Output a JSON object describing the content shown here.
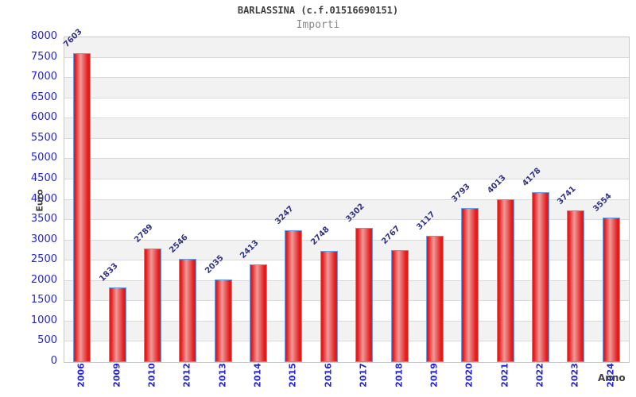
{
  "header": {
    "title": "BARLASSINA (c.f.01516690151)",
    "subtitle": "Importi"
  },
  "chart_data": {
    "type": "bar",
    "title": "BARLASSINA (c.f.01516690151)",
    "subtitle": "Importi",
    "xlabel": "Anno",
    "ylabel": "Euro",
    "categories": [
      "2006",
      "2009",
      "2010",
      "2012",
      "2013",
      "2014",
      "2015",
      "2016",
      "2017",
      "2018",
      "2019",
      "2020",
      "2021",
      "2022",
      "2023",
      "2024"
    ],
    "values": [
      7603,
      1833,
      2789,
      2546,
      2035,
      2413,
      3247,
      2748,
      3302,
      2767,
      3117,
      3793,
      4013,
      4178,
      3741,
      3554
    ],
    "ylim": [
      0,
      8000
    ],
    "ytick_step": 500,
    "grid": "horizontal-bands",
    "legend": "none",
    "value_labels": "above-bars-rotated-45",
    "colors": {
      "bar_fill_edge": "#e31b1b",
      "bar_fill_mid": "#ef9a9a",
      "bar_border": "#64a0e8",
      "tick_label": "#2222dd",
      "value_label": "#333388",
      "band": "#f2f2f2",
      "gridline": "#d9d9d9",
      "plot_border": "#c9c9c9",
      "title": "#404040",
      "subtitle": "#878787",
      "axis_title": "#404040"
    }
  }
}
